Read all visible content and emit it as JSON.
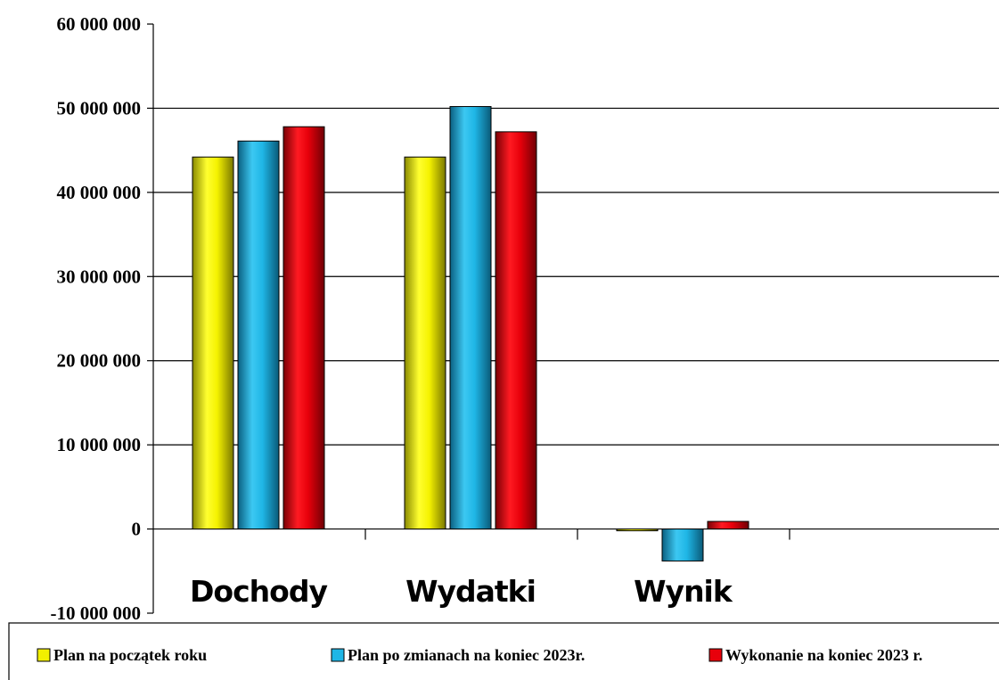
{
  "chart_data": {
    "type": "bar",
    "categories": [
      "Dochody",
      "Wydatki",
      "Wynik"
    ],
    "series": [
      {
        "name": "Plan na początek roku",
        "color": "#f2f000",
        "values": [
          44200000,
          44200000,
          -200000
        ]
      },
      {
        "name": "Plan po zmianach na koniec 2023r.",
        "color": "#1fb6e6",
        "values": [
          46100000,
          50200000,
          -3800000
        ]
      },
      {
        "name": "Wykonanie na koniec 2023 r.",
        "color": "#e8000b",
        "values": [
          47800000,
          47200000,
          900000
        ]
      }
    ],
    "ylim": [
      -10000000,
      60000000
    ],
    "yticks": [
      60000000,
      50000000,
      40000000,
      30000000,
      20000000,
      10000000,
      0,
      -10000000
    ],
    "ytick_labels": [
      "60 000 000",
      "50 000 000",
      "40 000 000",
      "30 000 000",
      "20 000 000",
      "10 000 000",
      "0",
      "-10 000 000"
    ],
    "grid": "horizontal",
    "legend_position": "bottom"
  }
}
